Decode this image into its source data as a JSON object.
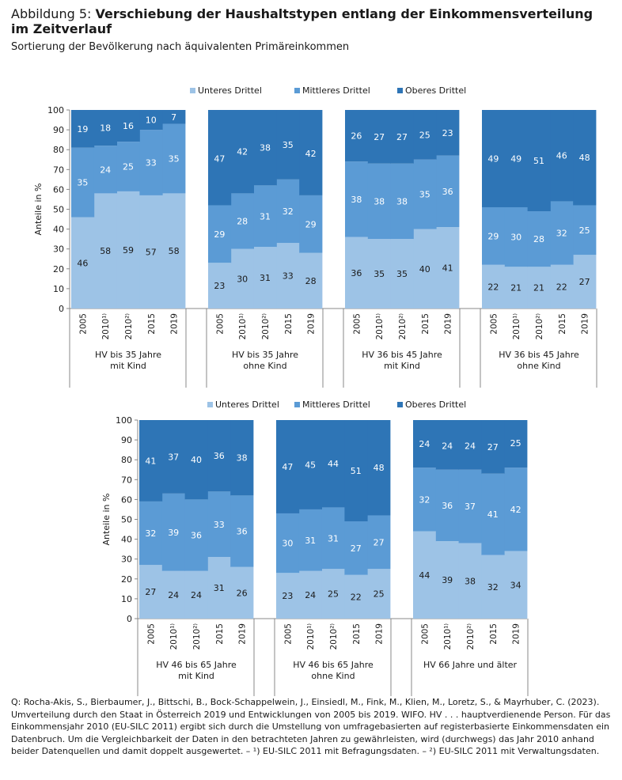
{
  "title": {
    "prefix": "Abbildung 5: ",
    "main": "Verschiebung der Haushaltstypen entlang der Einkommensverteilung im Zeitverlauf"
  },
  "subtitle": "Sortierung der Bevölkerung nach äquivalenten Primäreinkommen",
  "footnote": "Q: Rocha-Akis, S., Bierbaumer, J., Bittschi, B., Bock-Schappelwein, J., Einsiedl, M., Fink, M., Klien, M., Loretz, S., & Mayrhuber, C. (2023). Umverteilung durch den Staat in Österreich 2019 und Entwicklungen von 2005 bis 2019. WIFO. HV . . . hauptverdienende Person. Für das Einkommensjahr 2010 (EU-SILC 2011) ergibt sich durch die Umstellung von umfragebasierten auf registerbasierte Einkommensdaten ein Datenbruch. Um die Vergleichbarkeit der Daten in den betrachteten Jahren zu gewährleisten, wird (durchwegs) das Jahr 2010 anhand beider Datenquellen und damit doppelt ausgewertet. – ¹) EU-SILC 2011 mit Befragungsdaten. – ²) EU-SILC 2011 mit Verwaltungsdaten.",
  "colors": {
    "Unteres Drittel": "#9dc3e6",
    "Mittleres Drittel": "#5b9bd5",
    "Oberes Drittel": "#2e75b6"
  },
  "chart_data": [
    {
      "type": "bar",
      "stacked": true,
      "ylabel": "Anteile in %",
      "ylim": [
        0,
        100
      ],
      "yticks": [
        0,
        10,
        20,
        30,
        40,
        50,
        60,
        70,
        80,
        90,
        100
      ],
      "legend": [
        "Unteres Drittel",
        "Mittleres Drittel",
        "Oberes Drittel"
      ],
      "legend_position": "top",
      "categories": [
        "2005",
        "2010¹⁾",
        "2010²⁾",
        "2015",
        "2019"
      ],
      "panels": [
        {
          "label": "HV bis 35 Jahre\nmit Kind",
          "series": [
            {
              "name": "Unteres Drittel",
              "values": [
                46,
                58,
                59,
                57,
                58
              ]
            },
            {
              "name": "Mittleres Drittel",
              "values": [
                35,
                24,
                25,
                33,
                35
              ]
            },
            {
              "name": "Oberes Drittel",
              "values": [
                19,
                18,
                16,
                10,
                7
              ]
            }
          ]
        },
        {
          "label": "HV bis 35 Jahre\nohne Kind",
          "series": [
            {
              "name": "Unteres Drittel",
              "values": [
                23,
                30,
                31,
                33,
                28
              ]
            },
            {
              "name": "Mittleres Drittel",
              "values": [
                29,
                28,
                31,
                32,
                29
              ]
            },
            {
              "name": "Oberes Drittel",
              "values": [
                47,
                42,
                38,
                35,
                42
              ]
            }
          ]
        },
        {
          "label": "HV 36 bis 45 Jahre\nmit Kind",
          "series": [
            {
              "name": "Unteres Drittel",
              "values": [
                36,
                35,
                35,
                40,
                41
              ]
            },
            {
              "name": "Mittleres Drittel",
              "values": [
                38,
                38,
                38,
                35,
                36
              ]
            },
            {
              "name": "Oberes Drittel",
              "values": [
                26,
                27,
                27,
                25,
                23
              ]
            }
          ]
        },
        {
          "label": "HV 36 bis 45 Jahre\nohne Kind",
          "series": [
            {
              "name": "Unteres Drittel",
              "values": [
                22,
                21,
                21,
                22,
                27
              ]
            },
            {
              "name": "Mittleres Drittel",
              "values": [
                29,
                30,
                28,
                32,
                25
              ]
            },
            {
              "name": "Oberes Drittel",
              "values": [
                49,
                49,
                51,
                46,
                48
              ]
            }
          ]
        }
      ]
    },
    {
      "type": "bar",
      "stacked": true,
      "ylabel": "Anteile in %",
      "ylim": [
        0,
        100
      ],
      "yticks": [
        0,
        10,
        20,
        30,
        40,
        50,
        60,
        70,
        80,
        90,
        100
      ],
      "legend": [
        "Unteres Drittel",
        "Mittleres Drittel",
        "Oberes Drittel"
      ],
      "legend_position": "top",
      "categories": [
        "2005",
        "2010¹⁾",
        "2010²⁾",
        "2015",
        "2019"
      ],
      "panels": [
        {
          "label": "HV 46 bis 65 Jahre\nmit Kind",
          "series": [
            {
              "name": "Unteres Drittel",
              "values": [
                27,
                24,
                24,
                31,
                26
              ]
            },
            {
              "name": "Mittleres Drittel",
              "values": [
                32,
                39,
                36,
                33,
                36
              ]
            },
            {
              "name": "Oberes Drittel",
              "values": [
                41,
                37,
                40,
                36,
                38
              ]
            }
          ]
        },
        {
          "label": "HV 46 bis 65 Jahre\nohne Kind",
          "series": [
            {
              "name": "Unteres Drittel",
              "values": [
                23,
                24,
                25,
                22,
                25
              ]
            },
            {
              "name": "Mittleres Drittel",
              "values": [
                30,
                31,
                31,
                27,
                27
              ]
            },
            {
              "name": "Oberes Drittel",
              "values": [
                47,
                45,
                44,
                51,
                48
              ]
            }
          ]
        },
        {
          "label": "HV 66 Jahre und älter",
          "series": [
            {
              "name": "Unteres Drittel",
              "values": [
                44,
                39,
                38,
                32,
                34
              ]
            },
            {
              "name": "Mittleres Drittel",
              "values": [
                32,
                36,
                37,
                41,
                42
              ]
            },
            {
              "name": "Oberes Drittel",
              "values": [
                24,
                24,
                24,
                27,
                25
              ]
            }
          ]
        }
      ]
    }
  ]
}
